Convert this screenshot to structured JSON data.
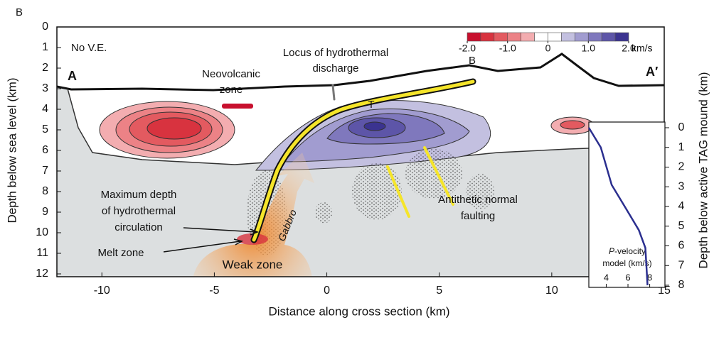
{
  "chart_data": [
    {
      "type": "section",
      "panel_label": "B",
      "xlabel": "Distance along cross section (km)",
      "xlim": [
        -12,
        15
      ],
      "xticks": [
        -10,
        -5,
        0,
        5,
        10,
        15
      ],
      "ylabel": "Depth below sea level (km)",
      "ylim": [
        0,
        12
      ],
      "yticks": [
        0,
        1,
        2,
        3,
        4,
        5,
        6,
        7,
        8,
        9,
        10,
        11,
        12
      ],
      "y2label": "Depth below active TAG mound (km)",
      "y2lim": [
        0,
        8
      ],
      "y2ticks": [
        0,
        1,
        2,
        3,
        4,
        5,
        6,
        7,
        8
      ],
      "colorbar": {
        "unit": "km/s",
        "lim": [
          -2,
          2
        ],
        "ticks": [
          {
            "value": -2,
            "label": "-2.0"
          },
          {
            "value": -1,
            "label": "-1.0"
          },
          0,
          {
            "value": 1,
            "label": "1.0"
          },
          {
            "value": 2,
            "label": "2.0"
          }
        ],
        "colors": [
          "#c8102e",
          "#d8333f",
          "#e35a60",
          "#ec8286",
          "#f3adb0",
          "#ffffff",
          "#ffffff",
          "#c3c0e0",
          "#a19cd0",
          "#7f78bd",
          "#5d55a8",
          "#3b3390"
        ]
      },
      "annotations": [
        "No V.E.",
        "Locus of hydrothermal",
        "discharge",
        "Neovolcanic",
        "zone",
        "A",
        "A′",
        "T",
        "B",
        "Antithetic normal",
        "faulting",
        "Maximum depth",
        "of hydrothermal",
        "circulation",
        "Melt zone",
        "Weak zone",
        "Gabbro"
      ]
    },
    {
      "type": "line",
      "title_italic": "P",
      "title": "-velocity",
      "subtitle": "model (km/s)",
      "xlim": [
        2.4,
        9.4
      ],
      "xticks": [
        4,
        6,
        8
      ],
      "ylim": [
        0,
        8
      ],
      "color": "#2b2f8f",
      "x": [
        2.4,
        3.5,
        4.5,
        5.7,
        7.0,
        7.6,
        7.8
      ],
      "values": [
        0,
        1,
        2.9,
        4,
        5.2,
        6.1,
        8
      ]
    }
  ]
}
